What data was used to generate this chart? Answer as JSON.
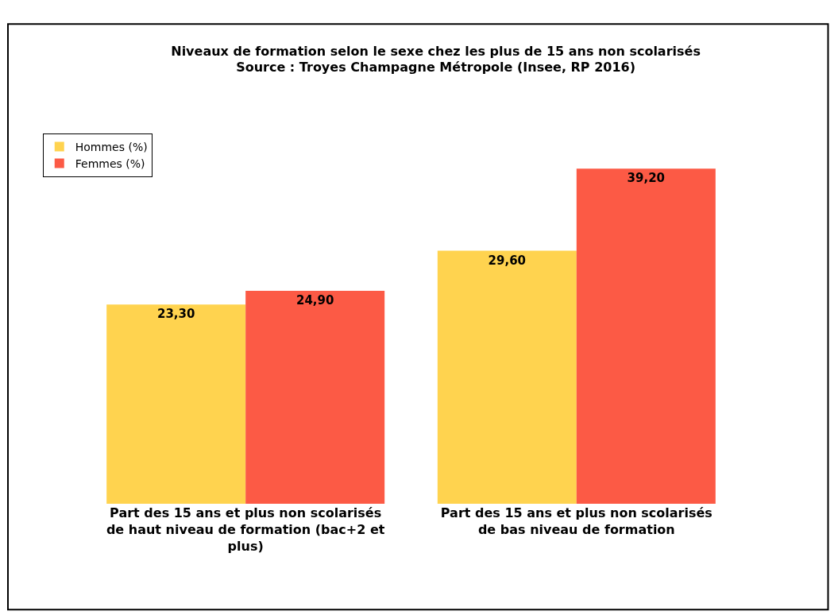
{
  "chart_data": {
    "type": "bar",
    "title": "Niveaux de formation selon le sexe chez les plus de 15 ans non scolarisés",
    "subtitle": "Source : Troyes Champagne Métropole (Insee, RP 2016)",
    "categories": [
      "Part des 15 ans et plus non scolarisés de haut niveau de formation (bac+2 et plus)",
      "Part des 15 ans et plus non scolarisés de bas niveau de formation"
    ],
    "series": [
      {
        "name": "Hommes (%)",
        "color": "#ffd34f",
        "values": [
          23.3,
          29.6
        ],
        "value_labels": [
          "23,30",
          "29,60"
        ]
      },
      {
        "name": "Femmes (%)",
        "color": "#fc5a45",
        "values": [
          24.9,
          39.2
        ],
        "value_labels": [
          "24,90",
          "39,20"
        ]
      }
    ],
    "legend": "top left"
  }
}
